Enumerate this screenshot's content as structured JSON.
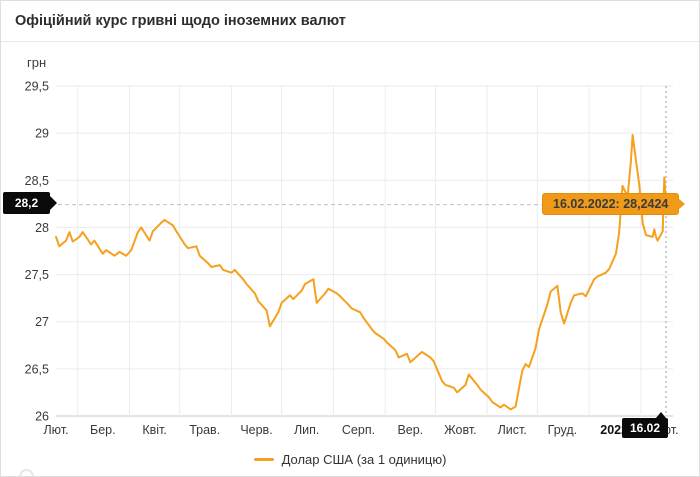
{
  "header": {
    "title": "Офіційний курс гривні щодо іноземних валют"
  },
  "chart": {
    "y_unit": "грн",
    "markers": {
      "y_badge": "28,2",
      "x_badge": "16.02",
      "tooltip": "16.02.2022: 28,2424"
    },
    "legend": {
      "label": "Долар США (за 1 одиницю)"
    },
    "colors": {
      "line": "#F5A01E",
      "tooltip_bg": "#F09A17",
      "tooltip_border": "#E18E0F",
      "badge_bg": "#0A0A0A",
      "badge_text": "#FFFFFF"
    }
  },
  "chart_data": {
    "type": "line",
    "title": "Офіційний курс гривні щодо іноземних валют",
    "ylabel": "грн",
    "ylim": [
      26,
      29.5
    ],
    "x_range": [
      "2021-02-16",
      "2022-02-16"
    ],
    "grid": true,
    "legend_position": "bottom",
    "y_ticks": [
      {
        "label": "29,5",
        "value": 29.5
      },
      {
        "label": "29",
        "value": 29.0
      },
      {
        "label": "28,5",
        "value": 28.5
      },
      {
        "label": "28",
        "value": 28.0
      },
      {
        "label": "27,5",
        "value": 27.5
      },
      {
        "label": "27",
        "value": 27.0
      },
      {
        "label": "26,5",
        "value": 26.5
      },
      {
        "label": "26",
        "value": 26.0
      }
    ],
    "x_ticks": [
      "Лют.",
      "Бер.",
      "Квіт.",
      "Трав.",
      "Черв.",
      "Лип.",
      "Серп.",
      "Вер.",
      "Жовт.",
      "Лист.",
      "Груд.",
      "2022",
      "Лют."
    ],
    "highlight": {
      "date": "2022-02-16",
      "value": 28.2424,
      "label": "16.02.2022: 28,2424"
    },
    "series": [
      {
        "name": "Долар США (за 1 одиницю)",
        "points": [
          [
            "2021-02-16",
            27.9
          ],
          [
            "2021-02-18",
            27.8
          ],
          [
            "2021-02-22",
            27.86
          ],
          [
            "2021-02-24",
            27.95
          ],
          [
            "2021-02-26",
            27.85
          ],
          [
            "2021-03-02",
            27.9
          ],
          [
            "2021-03-04",
            27.95
          ],
          [
            "2021-03-09",
            27.82
          ],
          [
            "2021-03-11",
            27.86
          ],
          [
            "2021-03-16",
            27.72
          ],
          [
            "2021-03-18",
            27.76
          ],
          [
            "2021-03-23",
            27.7
          ],
          [
            "2021-03-26",
            27.74
          ],
          [
            "2021-03-30",
            27.7
          ],
          [
            "2021-04-02",
            27.76
          ],
          [
            "2021-04-06",
            27.95
          ],
          [
            "2021-04-08",
            28.0
          ],
          [
            "2021-04-13",
            27.86
          ],
          [
            "2021-04-15",
            27.96
          ],
          [
            "2021-04-20",
            28.05
          ],
          [
            "2021-04-22",
            28.08
          ],
          [
            "2021-04-27",
            28.02
          ],
          [
            "2021-04-29",
            27.96
          ],
          [
            "2021-05-04",
            27.82
          ],
          [
            "2021-05-06",
            27.78
          ],
          [
            "2021-05-11",
            27.8
          ],
          [
            "2021-05-13",
            27.7
          ],
          [
            "2021-05-18",
            27.62
          ],
          [
            "2021-05-20",
            27.58
          ],
          [
            "2021-05-25",
            27.6
          ],
          [
            "2021-05-27",
            27.55
          ],
          [
            "2021-06-01",
            27.52
          ],
          [
            "2021-06-03",
            27.55
          ],
          [
            "2021-06-08",
            27.45
          ],
          [
            "2021-06-10",
            27.4
          ],
          [
            "2021-06-15",
            27.3
          ],
          [
            "2021-06-17",
            27.22
          ],
          [
            "2021-06-22",
            27.12
          ],
          [
            "2021-06-24",
            26.95
          ],
          [
            "2021-06-29",
            27.1
          ],
          [
            "2021-07-01",
            27.2
          ],
          [
            "2021-07-06",
            27.28
          ],
          [
            "2021-07-08",
            27.24
          ],
          [
            "2021-07-13",
            27.33
          ],
          [
            "2021-07-15",
            27.4
          ],
          [
            "2021-07-20",
            27.45
          ],
          [
            "2021-07-22",
            27.2
          ],
          [
            "2021-07-27",
            27.3
          ],
          [
            "2021-07-29",
            27.35
          ],
          [
            "2021-08-03",
            27.3
          ],
          [
            "2021-08-05",
            27.27
          ],
          [
            "2021-08-10",
            27.18
          ],
          [
            "2021-08-12",
            27.14
          ],
          [
            "2021-08-17",
            27.1
          ],
          [
            "2021-08-19",
            27.04
          ],
          [
            "2021-08-24",
            26.92
          ],
          [
            "2021-08-26",
            26.88
          ],
          [
            "2021-08-31",
            26.82
          ],
          [
            "2021-09-02",
            26.78
          ],
          [
            "2021-09-07",
            26.7
          ],
          [
            "2021-09-09",
            26.62
          ],
          [
            "2021-09-14",
            26.66
          ],
          [
            "2021-09-16",
            26.57
          ],
          [
            "2021-09-21",
            26.65
          ],
          [
            "2021-09-23",
            26.68
          ],
          [
            "2021-09-28",
            26.62
          ],
          [
            "2021-09-30",
            26.58
          ],
          [
            "2021-10-05",
            26.37
          ],
          [
            "2021-10-07",
            26.33
          ],
          [
            "2021-10-12",
            26.3
          ],
          [
            "2021-10-14",
            26.25
          ],
          [
            "2021-10-19",
            26.33
          ],
          [
            "2021-10-21",
            26.44
          ],
          [
            "2021-10-26",
            26.33
          ],
          [
            "2021-10-28",
            26.28
          ],
          [
            "2021-11-02",
            26.2
          ],
          [
            "2021-11-04",
            26.15
          ],
          [
            "2021-11-09",
            26.09
          ],
          [
            "2021-11-11",
            26.12
          ],
          [
            "2021-11-15",
            26.07
          ],
          [
            "2021-11-18",
            26.1
          ],
          [
            "2021-11-22",
            26.48
          ],
          [
            "2021-11-24",
            26.55
          ],
          [
            "2021-11-26",
            26.52
          ],
          [
            "2021-11-30",
            26.72
          ],
          [
            "2021-12-02",
            26.92
          ],
          [
            "2021-12-07",
            27.18
          ],
          [
            "2021-12-09",
            27.32
          ],
          [
            "2021-12-13",
            27.38
          ],
          [
            "2021-12-15",
            27.1
          ],
          [
            "2021-12-17",
            26.98
          ],
          [
            "2021-12-21",
            27.2
          ],
          [
            "2021-12-23",
            27.28
          ],
          [
            "2021-12-28",
            27.3
          ],
          [
            "2021-12-30",
            27.27
          ],
          [
            "2022-01-04",
            27.45
          ],
          [
            "2022-01-06",
            27.48
          ],
          [
            "2022-01-11",
            27.52
          ],
          [
            "2022-01-13",
            27.56
          ],
          [
            "2022-01-17",
            27.72
          ],
          [
            "2022-01-19",
            27.95
          ],
          [
            "2022-01-20",
            28.2
          ],
          [
            "2022-01-21",
            28.44
          ],
          [
            "2022-01-24",
            28.33
          ],
          [
            "2022-01-26",
            28.7
          ],
          [
            "2022-01-27",
            28.98
          ],
          [
            "2022-01-28",
            28.85
          ],
          [
            "2022-01-31",
            28.45
          ],
          [
            "2022-02-02",
            28.05
          ],
          [
            "2022-02-04",
            27.92
          ],
          [
            "2022-02-08",
            27.9
          ],
          [
            "2022-02-09",
            27.98
          ],
          [
            "2022-02-10",
            27.9
          ],
          [
            "2022-02-11",
            27.86
          ],
          [
            "2022-02-14",
            27.96
          ],
          [
            "2022-02-15",
            28.53
          ],
          [
            "2022-02-16",
            28.2424
          ]
        ]
      }
    ]
  }
}
